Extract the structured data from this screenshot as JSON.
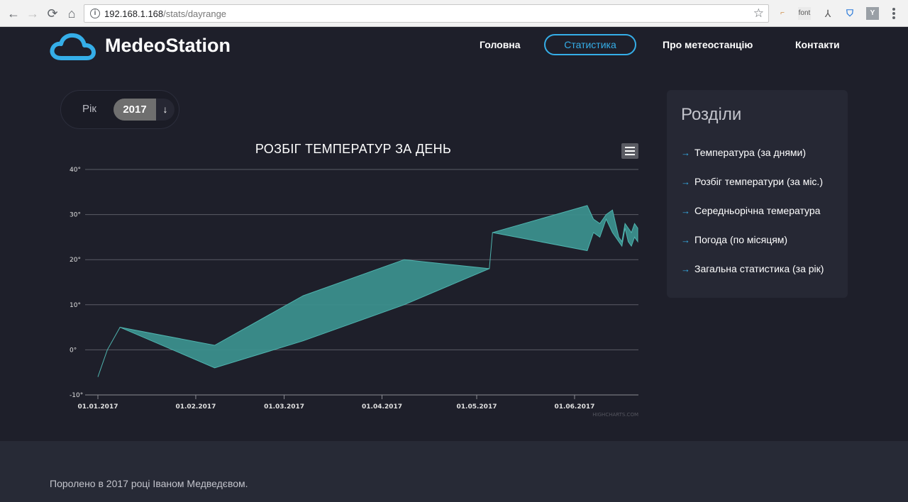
{
  "browser": {
    "url_host": "192.168.1.168",
    "url_path": "/stats/dayrange",
    "extensions": [
      "font",
      "Y"
    ]
  },
  "header": {
    "logo_text": "MedeoStation",
    "nav": [
      {
        "label": "Головна"
      },
      {
        "label": "Статистика",
        "active": true
      },
      {
        "label": "Про метеостанцію"
      },
      {
        "label": "Контакти"
      }
    ]
  },
  "filter": {
    "year_label": "Рік",
    "year_value": "2017",
    "arrow": "↓"
  },
  "chart_data": {
    "type": "area",
    "title": "РОЗБІГ ТЕМПЕРАТУР ЗА ДЕНЬ",
    "ylim": [
      -10,
      40
    ],
    "y_ticks": [
      "40°",
      "30°",
      "20°",
      "10°",
      "0°",
      "-10°"
    ],
    "x_ticks": [
      "01.01.2017",
      "01.02.2017",
      "01.03.2017",
      "01.04.2017",
      "01.05.2017",
      "01.06.2017"
    ],
    "grid": true,
    "credits": "HIGHCHARTS.COM",
    "color": "#3b8f8c",
    "series": [
      {
        "x": [
          "2017-01-01",
          "2017-01-04",
          "2017-01-08",
          "2017-02-07",
          "2017-03-07",
          "2017-04-08",
          "2017-05-05",
          "2017-05-06",
          "2017-06-05",
          "2017-06-07",
          "2017-06-09",
          "2017-06-11",
          "2017-06-13",
          "2017-06-15",
          "2017-06-16",
          "2017-06-17",
          "2017-06-18",
          "2017-06-19",
          "2017-06-20",
          "2017-06-21"
        ],
        "high": [
          -6,
          0,
          5,
          1,
          12,
          20,
          18,
          26,
          32,
          29,
          28,
          30,
          31,
          25,
          24,
          28,
          27,
          26,
          28,
          27
        ],
        "low": [
          -6,
          0,
          5,
          -4,
          2,
          10,
          18,
          26,
          22,
          26,
          25,
          29,
          26,
          24,
          23,
          27,
          24,
          23,
          25,
          24
        ]
      }
    ]
  },
  "sidebar": {
    "title": "Розділи",
    "items": [
      {
        "label": "Температура (за днями)"
      },
      {
        "label": "Розбіг температури (за міс.)"
      },
      {
        "label": "Середньорічна темература"
      },
      {
        "label": "Погода (по місяцям)"
      },
      {
        "label": "Загальна статистика (за рік)"
      }
    ]
  },
  "footer": {
    "text": "Поролено в 2017 році Іваном Медведєвом."
  }
}
